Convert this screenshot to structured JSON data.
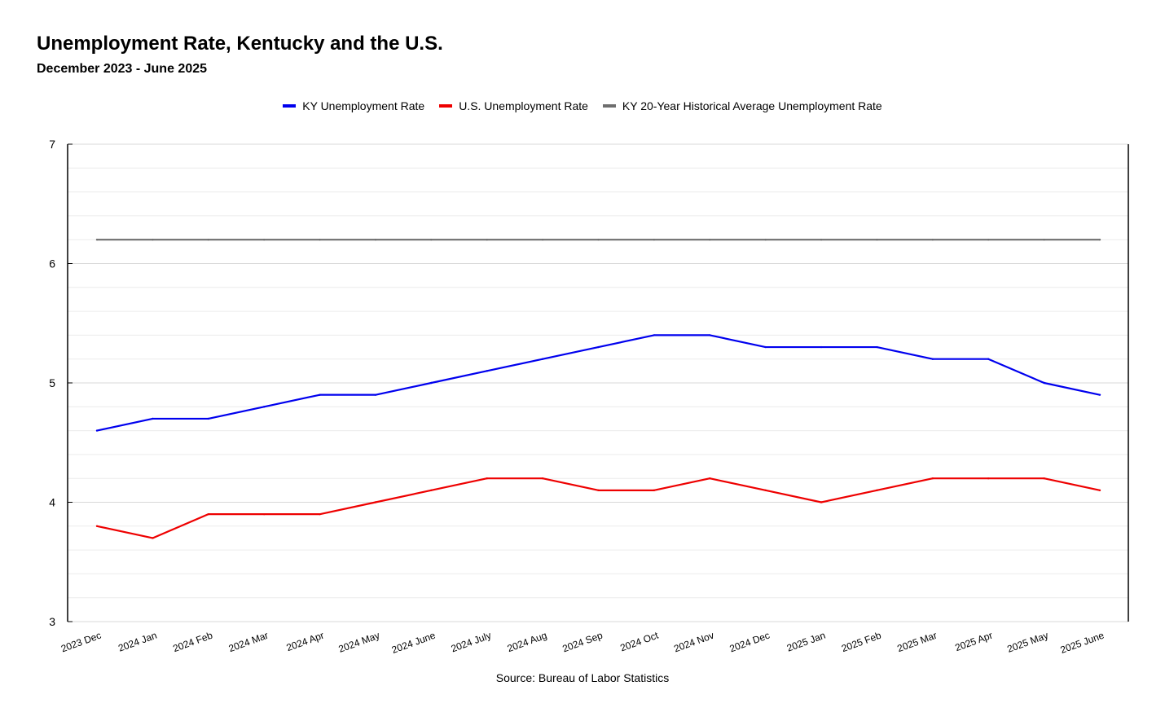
{
  "colors": {
    "ky": "#0000ee",
    "us": "#ee0000",
    "avg": "#6e6e6e",
    "grid": "#d9d9d9",
    "axis": "#000000"
  },
  "chart_data": {
    "type": "line",
    "title": "Unemployment Rate, Kentucky and the U.S.",
    "subtitle": "December 2023 - June 2025",
    "source": "Source: Bureau of Labor Statistics",
    "categories": [
      "2023 Dec",
      "2024 Jan",
      "2024 Feb",
      "2024 Mar",
      "2024 Apr",
      "2024 May",
      "2024 June",
      "2024 July",
      "2024 Aug",
      "2024 Sep",
      "2024 Oct",
      "2024 Nov",
      "2024 Dec",
      "2025 Jan",
      "2025 Feb",
      "2025 Mar",
      "2025 Apr",
      "2025 May",
      "2025 June"
    ],
    "yticks": [
      "7",
      "6",
      "5",
      "4",
      "3"
    ],
    "ylim": [
      3,
      7
    ],
    "grid": true,
    "legend_position": "top-center",
    "series": [
      {
        "name": "KY Unemployment Rate",
        "color": "#0000ee",
        "values": [
          4.6,
          4.7,
          4.7,
          4.8,
          4.9,
          4.9,
          5.0,
          5.1,
          5.2,
          5.3,
          5.4,
          5.4,
          5.3,
          5.3,
          5.3,
          5.2,
          5.2,
          5.0,
          4.9
        ]
      },
      {
        "name": "U.S. Unemployment Rate",
        "color": "#ee0000",
        "values": [
          3.8,
          3.7,
          3.9,
          3.9,
          3.9,
          4.0,
          4.1,
          4.2,
          4.2,
          4.1,
          4.1,
          4.2,
          4.1,
          4.0,
          4.1,
          4.2,
          4.2,
          4.2,
          4.1
        ]
      },
      {
        "name": "KY 20-Year Historical Average Unemployment Rate",
        "color": "#6e6e6e",
        "values": [
          6.2,
          6.2,
          6.2,
          6.2,
          6.2,
          6.2,
          6.2,
          6.2,
          6.2,
          6.2,
          6.2,
          6.2,
          6.2,
          6.2,
          6.2,
          6.2,
          6.2,
          6.2,
          6.2
        ]
      }
    ]
  }
}
